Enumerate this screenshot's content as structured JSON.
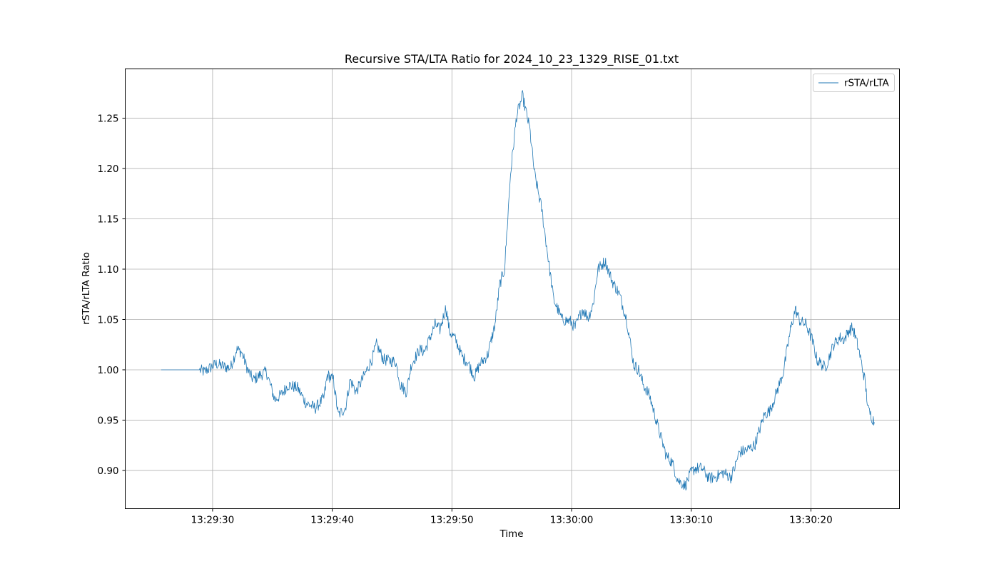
{
  "chart_data": {
    "type": "line",
    "title": "Recursive STA/LTA Ratio for 2024_10_23_1329_RISE_01.txt",
    "xlabel": "Time",
    "ylabel": "rSTA/rLTA Ratio",
    "x_unit": "time",
    "xlim": [
      "13:29:22.7",
      "13:30:27.4"
    ],
    "ylim": [
      0.862,
      1.299
    ],
    "x_ticks": [
      "13:29:30",
      "13:29:40",
      "13:29:50",
      "13:30:00",
      "13:30:10",
      "13:30:20"
    ],
    "y_ticks": [
      "0.90",
      "0.95",
      "1.00",
      "1.05",
      "1.10",
      "1.15",
      "1.20",
      "1.25"
    ],
    "grid": true,
    "legend_position": "upper right",
    "series": [
      {
        "name": "rSTA/rLTA",
        "color": "#1f77b4",
        "line_width": 0.8,
        "x": [
          "13:29:25.7",
          "13:29:28.9",
          "13:29:29.3",
          "13:29:29.8",
          "13:29:30.3",
          "13:29:31.0",
          "13:29:31.5",
          "13:29:32.0",
          "13:29:32.4",
          "13:29:33.0",
          "13:29:33.4",
          "13:29:34.0",
          "13:29:34.5",
          "13:29:35.2",
          "13:29:35.8",
          "13:29:36.3",
          "13:29:37.1",
          "13:29:37.8",
          "13:29:38.6",
          "13:29:39.3",
          "13:29:39.6",
          "13:29:40.1",
          "13:29:40.5",
          "13:29:41.1",
          "13:29:41.5",
          "13:29:42.0",
          "13:29:42.7",
          "13:29:43.3",
          "13:29:43.7",
          "13:29:44.3",
          "13:29:45.3",
          "13:29:45.7",
          "13:29:46.2",
          "13:29:46.6",
          "13:29:47.3",
          "13:29:47.7",
          "13:29:48.1",
          "13:29:48.6",
          "13:29:49.0",
          "13:29:49.5",
          "13:29:49.8",
          "13:29:50.3",
          "13:29:50.9",
          "13:29:51.3",
          "13:29:51.9",
          "13:29:52.3",
          "13:29:53.0",
          "13:29:53.6",
          "13:29:54.0",
          "13:29:54.4",
          "13:29:54.9",
          "13:29:55.4",
          "13:29:55.9",
          "13:29:56.5",
          "13:29:56.9",
          "13:29:57.5",
          "13:29:58.0",
          "13:29:58.5",
          "13:29:59.2",
          "13:29:59.9",
          "13:30:00.3",
          "13:30:00.9",
          "13:30:01.4",
          "13:30:01.8",
          "13:30:02.2",
          "13:30:02.8",
          "13:30:03.4",
          "13:30:04.0",
          "13:30:04.6",
          "13:30:05.2",
          "13:30:05.6",
          "13:30:06.0",
          "13:30:06.5",
          "13:30:07.3",
          "13:30:07.9",
          "13:30:08.4",
          "13:30:08.9",
          "13:30:09.5",
          "13:30:10.0",
          "13:30:10.3",
          "13:30:10.9",
          "13:30:11.5",
          "13:30:12.1",
          "13:30:12.7",
          "13:30:13.3",
          "13:30:13.7",
          "13:30:14.0",
          "13:30:14.6",
          "13:30:15.3",
          "13:30:16.1",
          "13:30:16.6",
          "13:30:17.2",
          "13:30:17.7",
          "13:30:18.3",
          "13:30:18.7",
          "13:30:19.1",
          "13:30:19.6",
          "13:30:20.1",
          "13:30:20.5",
          "13:30:21.2",
          "13:30:21.9",
          "13:30:22.4",
          "13:30:22.8",
          "13:30:23.1",
          "13:30:23.5",
          "13:30:24.0",
          "13:30:24.5",
          "13:30:24.8",
          "13:30:25.3"
        ],
        "y": [
          1.0,
          1.0,
          0.998,
          1.002,
          1.006,
          1.003,
          1.002,
          1.02,
          1.018,
          0.998,
          0.99,
          0.995,
          0.998,
          0.97,
          0.976,
          0.985,
          0.982,
          0.967,
          0.962,
          0.972,
          0.995,
          0.99,
          0.955,
          0.962,
          0.99,
          0.978,
          0.995,
          1.01,
          1.025,
          1.01,
          1.008,
          0.985,
          0.978,
          1.005,
          1.02,
          1.018,
          1.03,
          1.045,
          1.04,
          1.062,
          1.038,
          1.03,
          1.012,
          1.008,
          0.993,
          1.005,
          1.015,
          1.045,
          1.085,
          1.1,
          1.195,
          1.252,
          1.272,
          1.24,
          1.195,
          1.16,
          1.115,
          1.07,
          1.05,
          1.048,
          1.042,
          1.06,
          1.052,
          1.065,
          1.1,
          1.108,
          1.088,
          1.075,
          1.05,
          1.005,
          1.0,
          0.985,
          0.975,
          0.94,
          0.915,
          0.908,
          0.89,
          0.885,
          0.898,
          0.902,
          0.902,
          0.892,
          0.894,
          0.898,
          0.893,
          0.905,
          0.918,
          0.92,
          0.925,
          0.955,
          0.96,
          0.98,
          0.998,
          1.04,
          1.06,
          1.048,
          1.045,
          1.03,
          1.01,
          1.002,
          1.025,
          1.032,
          1.03,
          1.038,
          1.042,
          1.02,
          0.99,
          0.96,
          0.948
        ]
      }
    ]
  }
}
